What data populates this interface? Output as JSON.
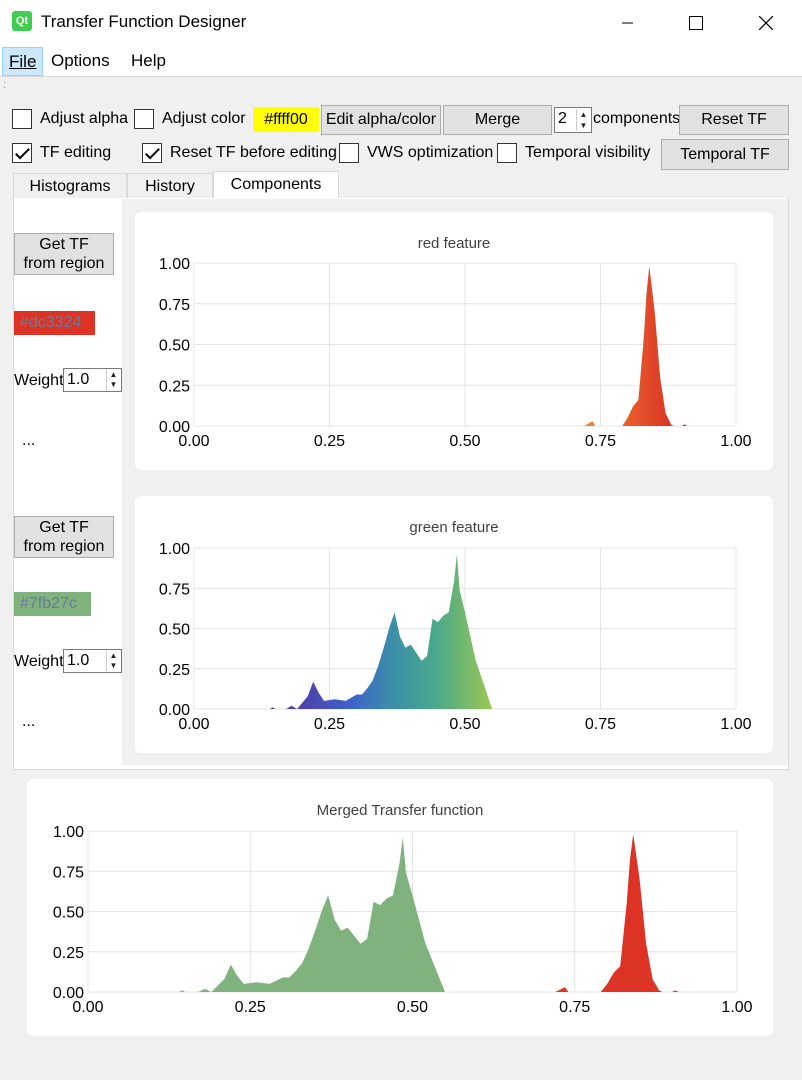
{
  "window": {
    "title": "Transfer Function Designer",
    "icon": "Qt"
  },
  "menu": {
    "file": "File",
    "options": "Options",
    "help": "Help"
  },
  "toolbar": {
    "adjust_alpha": "Adjust alpha",
    "adjust_color": "Adjust color",
    "color_value": "#ffff00",
    "color_label": "#ffff00",
    "edit_alpha_color": "Edit alpha/color",
    "merge": "Merge",
    "components_count": "2",
    "components_label": "components",
    "reset_tf": "Reset TF",
    "tf_editing": "TF editing",
    "tf_editing_checked": true,
    "reset_before_editing": "Reset TF before editing",
    "reset_before_editing_checked": true,
    "vws_optimization": "VWS optimization",
    "temporal_visibility": "Temporal visibility",
    "temporal_tf": "Temporal TF"
  },
  "tabs": [
    {
      "label": "Histograms",
      "active": false
    },
    {
      "label": "History",
      "active": false
    },
    {
      "label": "Components",
      "active": true
    }
  ],
  "components": [
    {
      "get_tf_label_1": "Get TF",
      "get_tf_label_2": "from region",
      "color": "#dc3324",
      "color_label": "#dc3324",
      "weight_label": "Weight",
      "weight": "1.0",
      "more": "..."
    },
    {
      "get_tf_label_1": "Get TF",
      "get_tf_label_2": "from region",
      "color": "#7fb27c",
      "color_label": "#7fb27c",
      "weight_label": "Weight",
      "weight": "1.0",
      "more": "..."
    }
  ],
  "chart_data": [
    {
      "type": "area",
      "title": "red feature",
      "xlim": [
        0,
        1
      ],
      "ylim": [
        0,
        1
      ],
      "xticks": [
        "0.00",
        "0.25",
        "0.50",
        "0.75",
        "1.00"
      ],
      "yticks": [
        "0.00",
        "0.25",
        "0.50",
        "0.75",
        "1.00"
      ],
      "fill": "gradient-orange-red",
      "series": [
        {
          "x": [
            0.72,
            0.73,
            0.735,
            0.74,
            0.79,
            0.8,
            0.81,
            0.82,
            0.83,
            0.835,
            0.84,
            0.85,
            0.86,
            0.87,
            0.88,
            0.885,
            0.9,
            0.905,
            0.91
          ],
          "y": [
            0,
            0.02,
            0.03,
            0,
            0,
            0.05,
            0.12,
            0.16,
            0.55,
            0.82,
            0.98,
            0.7,
            0.3,
            0.08,
            0.01,
            0,
            0,
            0.01,
            0
          ]
        }
      ]
    },
    {
      "type": "area",
      "title": "green feature",
      "xlim": [
        0,
        1
      ],
      "ylim": [
        0,
        1
      ],
      "xticks": [
        "0.00",
        "0.25",
        "0.50",
        "0.75",
        "1.00"
      ],
      "yticks": [
        "0.00",
        "0.25",
        "0.50",
        "0.75",
        "1.00"
      ],
      "fill": "gradient-viridis",
      "series": [
        {
          "x": [
            0.14,
            0.145,
            0.15,
            0.17,
            0.18,
            0.19,
            0.2,
            0.21,
            0.22,
            0.23,
            0.24,
            0.26,
            0.28,
            0.3,
            0.31,
            0.32,
            0.33,
            0.34,
            0.35,
            0.36,
            0.37,
            0.38,
            0.39,
            0.4,
            0.41,
            0.42,
            0.43,
            0.44,
            0.45,
            0.46,
            0.47,
            0.48,
            0.485,
            0.49,
            0.5,
            0.51,
            0.52,
            0.53,
            0.54,
            0.55
          ],
          "y": [
            0,
            0.01,
            0,
            0,
            0.02,
            0,
            0.04,
            0.08,
            0.17,
            0.1,
            0.05,
            0.06,
            0.05,
            0.09,
            0.09,
            0.13,
            0.18,
            0.27,
            0.38,
            0.5,
            0.6,
            0.45,
            0.38,
            0.4,
            0.35,
            0.3,
            0.33,
            0.56,
            0.54,
            0.58,
            0.6,
            0.8,
            0.96,
            0.74,
            0.6,
            0.45,
            0.3,
            0.2,
            0.1,
            0
          ]
        }
      ]
    },
    {
      "type": "area",
      "title": "Merged Transfer function",
      "xlim": [
        0,
        1
      ],
      "ylim": [
        0,
        1
      ],
      "xticks": [
        "0.00",
        "0.25",
        "0.50",
        "0.75",
        "1.00"
      ],
      "yticks": [
        "0.00",
        "0.25",
        "0.50",
        "0.75",
        "1.00"
      ],
      "series": [
        {
          "name": "",
          "color": "#7fb27c",
          "x": [
            0.14,
            0.145,
            0.15,
            0.17,
            0.18,
            0.19,
            0.2,
            0.21,
            0.22,
            0.23,
            0.24,
            0.26,
            0.28,
            0.3,
            0.31,
            0.32,
            0.33,
            0.34,
            0.35,
            0.36,
            0.37,
            0.38,
            0.39,
            0.4,
            0.41,
            0.42,
            0.43,
            0.44,
            0.45,
            0.46,
            0.47,
            0.48,
            0.485,
            0.49,
            0.5,
            0.51,
            0.52,
            0.53,
            0.54,
            0.55
          ],
          "y": [
            0,
            0.01,
            0,
            0,
            0.02,
            0,
            0.04,
            0.08,
            0.17,
            0.1,
            0.05,
            0.06,
            0.05,
            0.09,
            0.09,
            0.13,
            0.18,
            0.27,
            0.38,
            0.5,
            0.6,
            0.45,
            0.38,
            0.4,
            0.35,
            0.3,
            0.33,
            0.56,
            0.54,
            0.58,
            0.6,
            0.8,
            0.96,
            0.74,
            0.6,
            0.45,
            0.3,
            0.2,
            0.1,
            0
          ]
        },
        {
          "name": "",
          "color": "#dc3324",
          "x": [
            0.72,
            0.73,
            0.735,
            0.74,
            0.79,
            0.8,
            0.81,
            0.82,
            0.83,
            0.835,
            0.84,
            0.85,
            0.86,
            0.87,
            0.88,
            0.885,
            0.9,
            0.905,
            0.91
          ],
          "y": [
            0,
            0.02,
            0.03,
            0,
            0,
            0.05,
            0.12,
            0.16,
            0.55,
            0.82,
            0.98,
            0.7,
            0.3,
            0.08,
            0.01,
            0,
            0,
            0.01,
            0
          ]
        }
      ]
    }
  ]
}
